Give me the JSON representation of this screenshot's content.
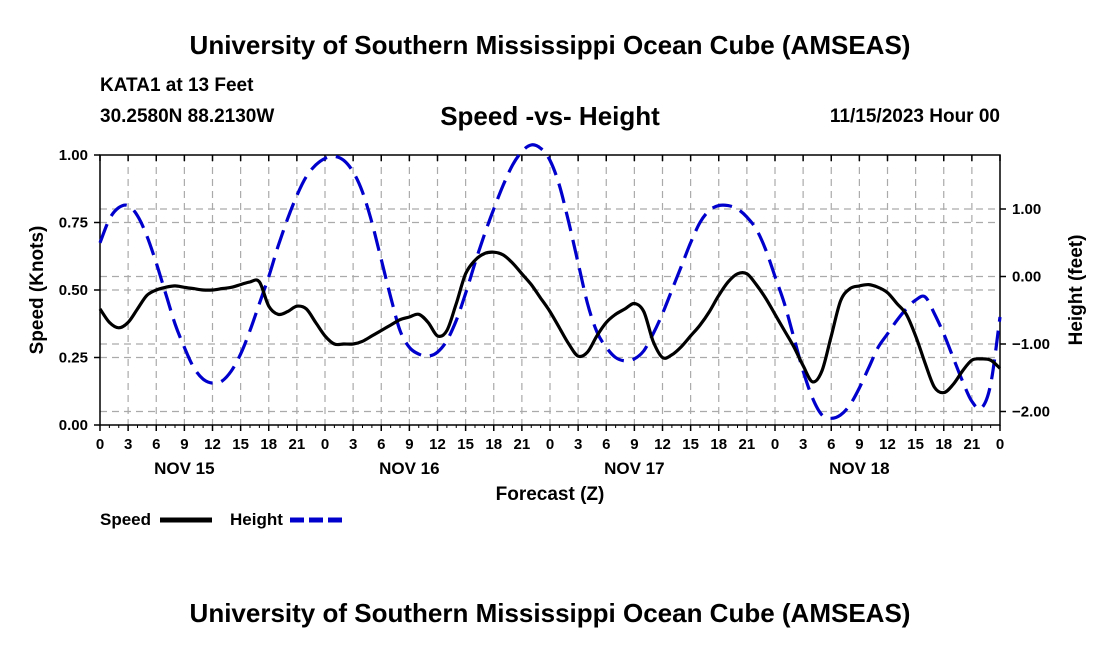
{
  "header": {
    "title": "University of Southern Mississippi Ocean Cube (AMSEAS)",
    "station": "KATA1 at 13 Feet",
    "coordinates": "30.2580N  88.2130W",
    "subtitle": "Speed -vs- Height",
    "datetime": "11/15/2023 Hour 00"
  },
  "footer": {
    "title": "University of Southern Mississippi Ocean Cube (AMSEAS)"
  },
  "chart_data": {
    "type": "line",
    "title": "Speed -vs- Height",
    "xlabel": "Forecast (Z)",
    "ylabel": "Speed (Knots)",
    "y2label": "Height (feet)",
    "xlim": [
      0,
      96
    ],
    "ylim": [
      0,
      1
    ],
    "y2lim": [
      -2.2,
      1.8
    ],
    "grid": true,
    "x_tick_labels": [
      "0",
      "3",
      "6",
      "9",
      "12",
      "15",
      "18",
      "21",
      "0",
      "3",
      "6",
      "9",
      "12",
      "15",
      "18",
      "21",
      "0",
      "3",
      "6",
      "9",
      "12",
      "15",
      "18",
      "21",
      "0",
      "3",
      "6",
      "9",
      "12",
      "15",
      "18",
      "21",
      "0"
    ],
    "day_labels": [
      {
        "label": "NOV 15",
        "x": 9
      },
      {
        "label": "NOV 16",
        "x": 33
      },
      {
        "label": "NOV 17",
        "x": 57
      },
      {
        "label": "NOV 18",
        "x": 81
      }
    ],
    "y_ticks": [
      {
        "value": 0,
        "label": "0.00"
      },
      {
        "value": 0.25,
        "label": "0.25"
      },
      {
        "value": 0.5,
        "label": "0.50"
      },
      {
        "value": 0.75,
        "label": "0.75"
      },
      {
        "value": 1,
        "label": "1.00"
      }
    ],
    "y2_ticks": [
      {
        "value": 1,
        "label": "1.00"
      },
      {
        "value": 0,
        "label": "0.00"
      },
      {
        "value": -1,
        "label": "−1.00"
      },
      {
        "value": -2,
        "label": "−2.00"
      }
    ],
    "legend": {
      "position": "bottom-left"
    },
    "series": [
      {
        "name": "Speed",
        "axis": "left",
        "color": "#000000",
        "style": "solid",
        "x": [
          0,
          1,
          2,
          3,
          4,
          5,
          6,
          7,
          8,
          9,
          10,
          11,
          12,
          13,
          14,
          15,
          16,
          17,
          18,
          19,
          20,
          21,
          22,
          23,
          24,
          25,
          26,
          27,
          28,
          29,
          30,
          31,
          32,
          33,
          34,
          35,
          36,
          37,
          38,
          39,
          40,
          41,
          42,
          43,
          44,
          45,
          46,
          47,
          48,
          49,
          50,
          51,
          52,
          53,
          54,
          55,
          56,
          57,
          58,
          59,
          60,
          61,
          62,
          63,
          64,
          65,
          66,
          67,
          68,
          69,
          70,
          71,
          72,
          73,
          74,
          75,
          76,
          77,
          78,
          79,
          80,
          81,
          82,
          83,
          84,
          85,
          86,
          87,
          88,
          89,
          90,
          91,
          92,
          93,
          94,
          95,
          96
        ],
        "values": [
          0.43,
          0.38,
          0.36,
          0.38,
          0.43,
          0.48,
          0.5,
          0.51,
          0.515,
          0.51,
          0.505,
          0.5,
          0.5,
          0.505,
          0.51,
          0.52,
          0.53,
          0.53,
          0.44,
          0.41,
          0.42,
          0.44,
          0.43,
          0.38,
          0.33,
          0.3,
          0.3,
          0.3,
          0.31,
          0.33,
          0.35,
          0.37,
          0.39,
          0.4,
          0.41,
          0.38,
          0.33,
          0.35,
          0.45,
          0.56,
          0.61,
          0.635,
          0.64,
          0.63,
          0.6,
          0.56,
          0.52,
          0.47,
          0.42,
          0.36,
          0.3,
          0.255,
          0.27,
          0.33,
          0.38,
          0.41,
          0.43,
          0.45,
          0.42,
          0.31,
          0.25,
          0.26,
          0.29,
          0.33,
          0.37,
          0.42,
          0.48,
          0.53,
          0.56,
          0.56,
          0.52,
          0.47,
          0.41,
          0.35,
          0.29,
          0.22,
          0.16,
          0.2,
          0.33,
          0.46,
          0.505,
          0.515,
          0.52,
          0.51,
          0.49,
          0.45,
          0.41,
          0.33,
          0.23,
          0.14,
          0.12,
          0.15,
          0.2,
          0.24,
          0.245,
          0.24,
          0.21
        ]
      },
      {
        "name": "Height",
        "axis": "right",
        "color": "#0000cc",
        "style": "dashed",
        "x": [
          0,
          1,
          2,
          3,
          4,
          5,
          6,
          7,
          8,
          9,
          10,
          11,
          12,
          13,
          14,
          15,
          16,
          17,
          18,
          19,
          20,
          21,
          22,
          23,
          24,
          25,
          26,
          27,
          28,
          29,
          30,
          31,
          32,
          33,
          34,
          35,
          36,
          37,
          38,
          39,
          40,
          41,
          42,
          43,
          44,
          45,
          46,
          47,
          48,
          49,
          50,
          51,
          52,
          53,
          54,
          55,
          56,
          57,
          58,
          59,
          60,
          61,
          62,
          63,
          64,
          65,
          66,
          67,
          68,
          69,
          70,
          71,
          72,
          73,
          74,
          75,
          76,
          77,
          78,
          79,
          80,
          81,
          82,
          83,
          84,
          85,
          86,
          87,
          88,
          89,
          90,
          91,
          92,
          93,
          94,
          95,
          96
        ],
        "values": [
          0.5,
          0.85,
          1.02,
          1.05,
          0.9,
          0.6,
          0.2,
          -0.25,
          -0.7,
          -1.05,
          -1.35,
          -1.52,
          -1.58,
          -1.55,
          -1.4,
          -1.15,
          -0.8,
          -0.4,
          0.0,
          0.45,
          0.85,
          1.2,
          1.48,
          1.65,
          1.75,
          1.78,
          1.72,
          1.55,
          1.25,
          0.8,
          0.25,
          -0.3,
          -0.8,
          -1.05,
          -1.15,
          -1.18,
          -1.12,
          -0.95,
          -0.65,
          -0.25,
          0.2,
          0.62,
          1.0,
          1.35,
          1.65,
          1.85,
          1.95,
          1.9,
          1.72,
          1.35,
          0.8,
          0.2,
          -0.4,
          -0.82,
          -1.05,
          -1.2,
          -1.25,
          -1.22,
          -1.1,
          -0.85,
          -0.55,
          -0.2,
          0.15,
          0.5,
          0.8,
          0.98,
          1.05,
          1.05,
          1.0,
          0.88,
          0.7,
          0.4,
          0.0,
          -0.4,
          -0.9,
          -1.4,
          -1.8,
          -2.05,
          -2.1,
          -2.05,
          -1.9,
          -1.65,
          -1.35,
          -1.05,
          -0.85,
          -0.65,
          -0.48,
          -0.35,
          -0.3,
          -0.55,
          -0.85,
          -1.2,
          -1.55,
          -1.85,
          -1.95,
          -1.6,
          -0.6
        ]
      }
    ]
  }
}
